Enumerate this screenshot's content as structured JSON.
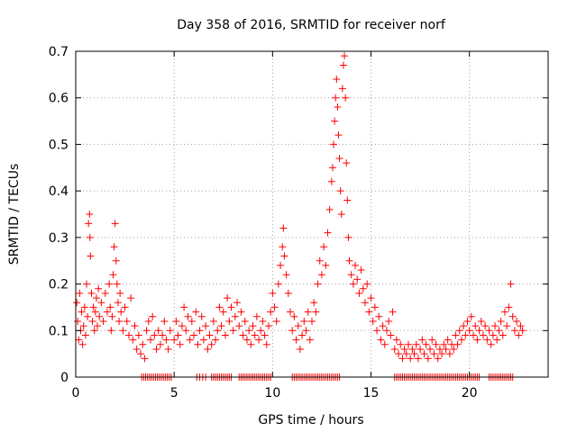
{
  "chart_data": {
    "type": "scatter",
    "title": "Day 358 of 2016, SRMTID for receiver norf",
    "xlabel": "GPS time / hours",
    "ylabel": "SRMTID / TECUs",
    "xlim": [
      0,
      24
    ],
    "ylim": [
      0,
      0.7
    ],
    "xticks": [
      0,
      5,
      10,
      15,
      20
    ],
    "yticks": [
      0,
      0.1,
      0.2,
      0.3,
      0.4,
      0.5,
      0.6,
      0.7
    ],
    "xtick_labels": [
      "0",
      "5",
      "10",
      "15",
      "20"
    ],
    "ytick_labels": [
      "0",
      "0.1",
      "0.2",
      "0.3",
      "0.4",
      "0.5",
      "0.6",
      "0.7"
    ],
    "grid": true,
    "marker": "+",
    "series_color": "#ff0000",
    "series": [
      {
        "name": "SRMTID",
        "points": [
          [
            0.05,
            0.16
          ],
          [
            0.1,
            0.12
          ],
          [
            0.15,
            0.08
          ],
          [
            0.2,
            0.18
          ],
          [
            0.25,
            0.1
          ],
          [
            0.3,
            0.14
          ],
          [
            0.35,
            0.07
          ],
          [
            0.4,
            0.11
          ],
          [
            0.45,
            0.15
          ],
          [
            0.5,
            0.09
          ],
          [
            0.55,
            0.2
          ],
          [
            0.6,
            0.13
          ],
          [
            0.65,
            0.33
          ],
          [
            0.7,
            0.35
          ],
          [
            0.72,
            0.3
          ],
          [
            0.75,
            0.26
          ],
          [
            0.8,
            0.18
          ],
          [
            0.85,
            0.12
          ],
          [
            0.9,
            0.15
          ],
          [
            0.95,
            0.1
          ],
          [
            1.0,
            0.14
          ],
          [
            1.05,
            0.17
          ],
          [
            1.1,
            0.11
          ],
          [
            1.15,
            0.19
          ],
          [
            1.2,
            0.13
          ],
          [
            1.3,
            0.16
          ],
          [
            1.4,
            0.12
          ],
          [
            1.5,
            0.18
          ],
          [
            1.6,
            0.14
          ],
          [
            1.7,
            0.2
          ],
          [
            1.75,
            0.15
          ],
          [
            1.8,
            0.1
          ],
          [
            1.85,
            0.13
          ],
          [
            1.9,
            0.22
          ],
          [
            1.95,
            0.28
          ],
          [
            2.0,
            0.33
          ],
          [
            2.05,
            0.25
          ],
          [
            2.1,
            0.2
          ],
          [
            2.15,
            0.16
          ],
          [
            2.2,
            0.12
          ],
          [
            2.25,
            0.18
          ],
          [
            2.3,
            0.14
          ],
          [
            2.4,
            0.1
          ],
          [
            2.5,
            0.15
          ],
          [
            2.6,
            0.12
          ],
          [
            2.7,
            0.09
          ],
          [
            2.8,
            0.17
          ],
          [
            2.9,
            0.08
          ],
          [
            3.0,
            0.11
          ],
          [
            3.1,
            0.06
          ],
          [
            3.2,
            0.09
          ],
          [
            3.3,
            0.05
          ],
          [
            3.4,
            0.07
          ],
          [
            3.5,
            0.04
          ],
          [
            3.6,
            0.1
          ],
          [
            3.7,
            0.12
          ],
          [
            3.8,
            0.08
          ],
          [
            3.9,
            0.13
          ],
          [
            4.0,
            0.09
          ],
          [
            4.1,
            0.06
          ],
          [
            4.2,
            0.1
          ],
          [
            4.3,
            0.07
          ],
          [
            4.4,
            0.09
          ],
          [
            4.5,
            0.12
          ],
          [
            4.6,
            0.08
          ],
          [
            4.7,
            0.06
          ],
          [
            4.8,
            0.1
          ],
          [
            5.0,
            0.08
          ],
          [
            5.1,
            0.12
          ],
          [
            5.2,
            0.09
          ],
          [
            5.3,
            0.07
          ],
          [
            5.4,
            0.11
          ],
          [
            5.5,
            0.15
          ],
          [
            5.6,
            0.1
          ],
          [
            5.7,
            0.13
          ],
          [
            5.8,
            0.08
          ],
          [
            5.9,
            0.12
          ],
          [
            6.0,
            0.09
          ],
          [
            6.1,
            0.14
          ],
          [
            6.2,
            0.07
          ],
          [
            6.3,
            0.1
          ],
          [
            6.4,
            0.13
          ],
          [
            6.5,
            0.08
          ],
          [
            6.6,
            0.11
          ],
          [
            6.7,
            0.06
          ],
          [
            6.8,
            0.09
          ],
          [
            6.9,
            0.07
          ],
          [
            7.0,
            0.12
          ],
          [
            7.1,
            0.08
          ],
          [
            7.2,
            0.1
          ],
          [
            7.3,
            0.15
          ],
          [
            7.4,
            0.11
          ],
          [
            7.5,
            0.14
          ],
          [
            7.6,
            0.09
          ],
          [
            7.7,
            0.17
          ],
          [
            7.8,
            0.12
          ],
          [
            7.9,
            0.15
          ],
          [
            8.0,
            0.1
          ],
          [
            8.1,
            0.13
          ],
          [
            8.2,
            0.16
          ],
          [
            8.3,
            0.11
          ],
          [
            8.4,
            0.14
          ],
          [
            8.5,
            0.09
          ],
          [
            8.6,
            0.12
          ],
          [
            8.7,
            0.08
          ],
          [
            8.8,
            0.1
          ],
          [
            8.9,
            0.07
          ],
          [
            9.0,
            0.11
          ],
          [
            9.1,
            0.09
          ],
          [
            9.2,
            0.13
          ],
          [
            9.3,
            0.08
          ],
          [
            9.4,
            0.1
          ],
          [
            9.5,
            0.12
          ],
          [
            9.6,
            0.09
          ],
          [
            9.7,
            0.07
          ],
          [
            9.8,
            0.11
          ],
          [
            9.9,
            0.14
          ],
          [
            10.0,
            0.18
          ],
          [
            10.1,
            0.15
          ],
          [
            10.2,
            0.12
          ],
          [
            10.3,
            0.2
          ],
          [
            10.4,
            0.24
          ],
          [
            10.5,
            0.28
          ],
          [
            10.55,
            0.32
          ],
          [
            10.6,
            0.26
          ],
          [
            10.7,
            0.22
          ],
          [
            10.8,
            0.18
          ],
          [
            10.9,
            0.14
          ],
          [
            11.0,
            0.1
          ],
          [
            11.1,
            0.13
          ],
          [
            11.2,
            0.08
          ],
          [
            11.3,
            0.11
          ],
          [
            11.4,
            0.06
          ],
          [
            11.5,
            0.09
          ],
          [
            11.6,
            0.12
          ],
          [
            11.7,
            0.1
          ],
          [
            11.8,
            0.14
          ],
          [
            11.9,
            0.08
          ],
          [
            12.0,
            0.12
          ],
          [
            12.1,
            0.16
          ],
          [
            12.2,
            0.14
          ],
          [
            12.3,
            0.2
          ],
          [
            12.4,
            0.25
          ],
          [
            12.5,
            0.22
          ],
          [
            12.6,
            0.28
          ],
          [
            12.7,
            0.24
          ],
          [
            12.8,
            0.31
          ],
          [
            12.9,
            0.36
          ],
          [
            13.0,
            0.42
          ],
          [
            13.05,
            0.45
          ],
          [
            13.1,
            0.5
          ],
          [
            13.15,
            0.55
          ],
          [
            13.2,
            0.6
          ],
          [
            13.25,
            0.64
          ],
          [
            13.3,
            0.58
          ],
          [
            13.35,
            0.52
          ],
          [
            13.4,
            0.47
          ],
          [
            13.45,
            0.4
          ],
          [
            13.5,
            0.35
          ],
          [
            13.55,
            0.62
          ],
          [
            13.6,
            0.67
          ],
          [
            13.65,
            0.69
          ],
          [
            13.7,
            0.6
          ],
          [
            13.75,
            0.46
          ],
          [
            13.8,
            0.38
          ],
          [
            13.85,
            0.3
          ],
          [
            13.9,
            0.25
          ],
          [
            14.0,
            0.22
          ],
          [
            14.1,
            0.2
          ],
          [
            14.2,
            0.24
          ],
          [
            14.3,
            0.21
          ],
          [
            14.4,
            0.18
          ],
          [
            14.5,
            0.23
          ],
          [
            14.6,
            0.19
          ],
          [
            14.7,
            0.16
          ],
          [
            14.8,
            0.2
          ],
          [
            14.9,
            0.14
          ],
          [
            15.0,
            0.17
          ],
          [
            15.1,
            0.12
          ],
          [
            15.2,
            0.15
          ],
          [
            15.3,
            0.1
          ],
          [
            15.4,
            0.13
          ],
          [
            15.5,
            0.08
          ],
          [
            15.6,
            0.11
          ],
          [
            15.7,
            0.07
          ],
          [
            15.8,
            0.1
          ],
          [
            15.9,
            0.12
          ],
          [
            16.0,
            0.09
          ],
          [
            16.1,
            0.14
          ],
          [
            16.2,
            0.06
          ],
          [
            16.3,
            0.08
          ],
          [
            16.4,
            0.05
          ],
          [
            16.5,
            0.07
          ],
          [
            16.6,
            0.04
          ],
          [
            16.7,
            0.06
          ],
          [
            16.8,
            0.05
          ],
          [
            16.9,
            0.07
          ],
          [
            17.0,
            0.04
          ],
          [
            17.1,
            0.06
          ],
          [
            17.2,
            0.05
          ],
          [
            17.3,
            0.07
          ],
          [
            17.4,
            0.04
          ],
          [
            17.5,
            0.06
          ],
          [
            17.6,
            0.08
          ],
          [
            17.7,
            0.05
          ],
          [
            17.8,
            0.07
          ],
          [
            17.9,
            0.04
          ],
          [
            18.0,
            0.06
          ],
          [
            18.1,
            0.08
          ],
          [
            18.2,
            0.05
          ],
          [
            18.3,
            0.07
          ],
          [
            18.4,
            0.04
          ],
          [
            18.5,
            0.06
          ],
          [
            18.6,
            0.05
          ],
          [
            18.7,
            0.07
          ],
          [
            18.8,
            0.06
          ],
          [
            18.9,
            0.08
          ],
          [
            19.0,
            0.05
          ],
          [
            19.1,
            0.07
          ],
          [
            19.2,
            0.06
          ],
          [
            19.3,
            0.09
          ],
          [
            19.4,
            0.07
          ],
          [
            19.5,
            0.1
          ],
          [
            19.6,
            0.08
          ],
          [
            19.7,
            0.11
          ],
          [
            19.8,
            0.09
          ],
          [
            19.9,
            0.12
          ],
          [
            20.0,
            0.1
          ],
          [
            20.1,
            0.13
          ],
          [
            20.2,
            0.09
          ],
          [
            20.3,
            0.11
          ],
          [
            20.4,
            0.08
          ],
          [
            20.5,
            0.1
          ],
          [
            20.6,
            0.12
          ],
          [
            20.7,
            0.09
          ],
          [
            20.8,
            0.11
          ],
          [
            20.9,
            0.08
          ],
          [
            21.0,
            0.1
          ],
          [
            21.1,
            0.07
          ],
          [
            21.2,
            0.09
          ],
          [
            21.3,
            0.11
          ],
          [
            21.4,
            0.08
          ],
          [
            21.5,
            0.1
          ],
          [
            21.6,
            0.12
          ],
          [
            21.7,
            0.09
          ],
          [
            21.8,
            0.14
          ],
          [
            21.9,
            0.11
          ],
          [
            22.0,
            0.15
          ],
          [
            22.1,
            0.2
          ],
          [
            22.2,
            0.13
          ],
          [
            22.3,
            0.1
          ],
          [
            22.4,
            0.12
          ],
          [
            22.5,
            0.09
          ],
          [
            22.6,
            0.11
          ],
          [
            22.7,
            0.1
          ]
        ],
        "zero_points": [
          3.35,
          3.45,
          3.55,
          3.65,
          3.75,
          3.85,
          3.95,
          4.05,
          4.15,
          4.25,
          4.35,
          4.45,
          4.55,
          4.65,
          4.75,
          4.85,
          6.15,
          6.3,
          6.45,
          6.6,
          6.9,
          7.0,
          7.1,
          7.2,
          7.3,
          7.4,
          7.5,
          7.6,
          7.7,
          7.8,
          7.9,
          8.3,
          8.4,
          8.5,
          8.6,
          8.7,
          8.8,
          8.9,
          9.0,
          9.1,
          9.2,
          9.3,
          9.4,
          9.5,
          9.6,
          9.7,
          9.8,
          9.9,
          11.0,
          11.1,
          11.2,
          11.3,
          11.4,
          11.5,
          11.6,
          11.7,
          11.8,
          11.9,
          12.0,
          12.1,
          12.2,
          12.3,
          12.4,
          12.5,
          12.6,
          12.7,
          12.8,
          12.9,
          13.0,
          13.1,
          13.2,
          13.3,
          13.4,
          16.2,
          16.3,
          16.4,
          16.5,
          16.6,
          16.7,
          16.8,
          16.9,
          17.0,
          17.1,
          17.2,
          17.3,
          17.4,
          17.5,
          17.6,
          17.7,
          17.8,
          17.9,
          18.0,
          18.1,
          18.2,
          18.3,
          18.4,
          18.5,
          18.6,
          18.7,
          18.8,
          18.9,
          19.0,
          19.1,
          19.2,
          19.3,
          19.4,
          19.5,
          19.6,
          19.7,
          19.8,
          19.9,
          20.0,
          20.1,
          20.2,
          20.3,
          20.4,
          20.5,
          21.0,
          21.1,
          21.2,
          21.3,
          21.4,
          21.5,
          21.6,
          21.7,
          21.8,
          21.9,
          22.0,
          22.1,
          22.2
        ]
      }
    ]
  }
}
